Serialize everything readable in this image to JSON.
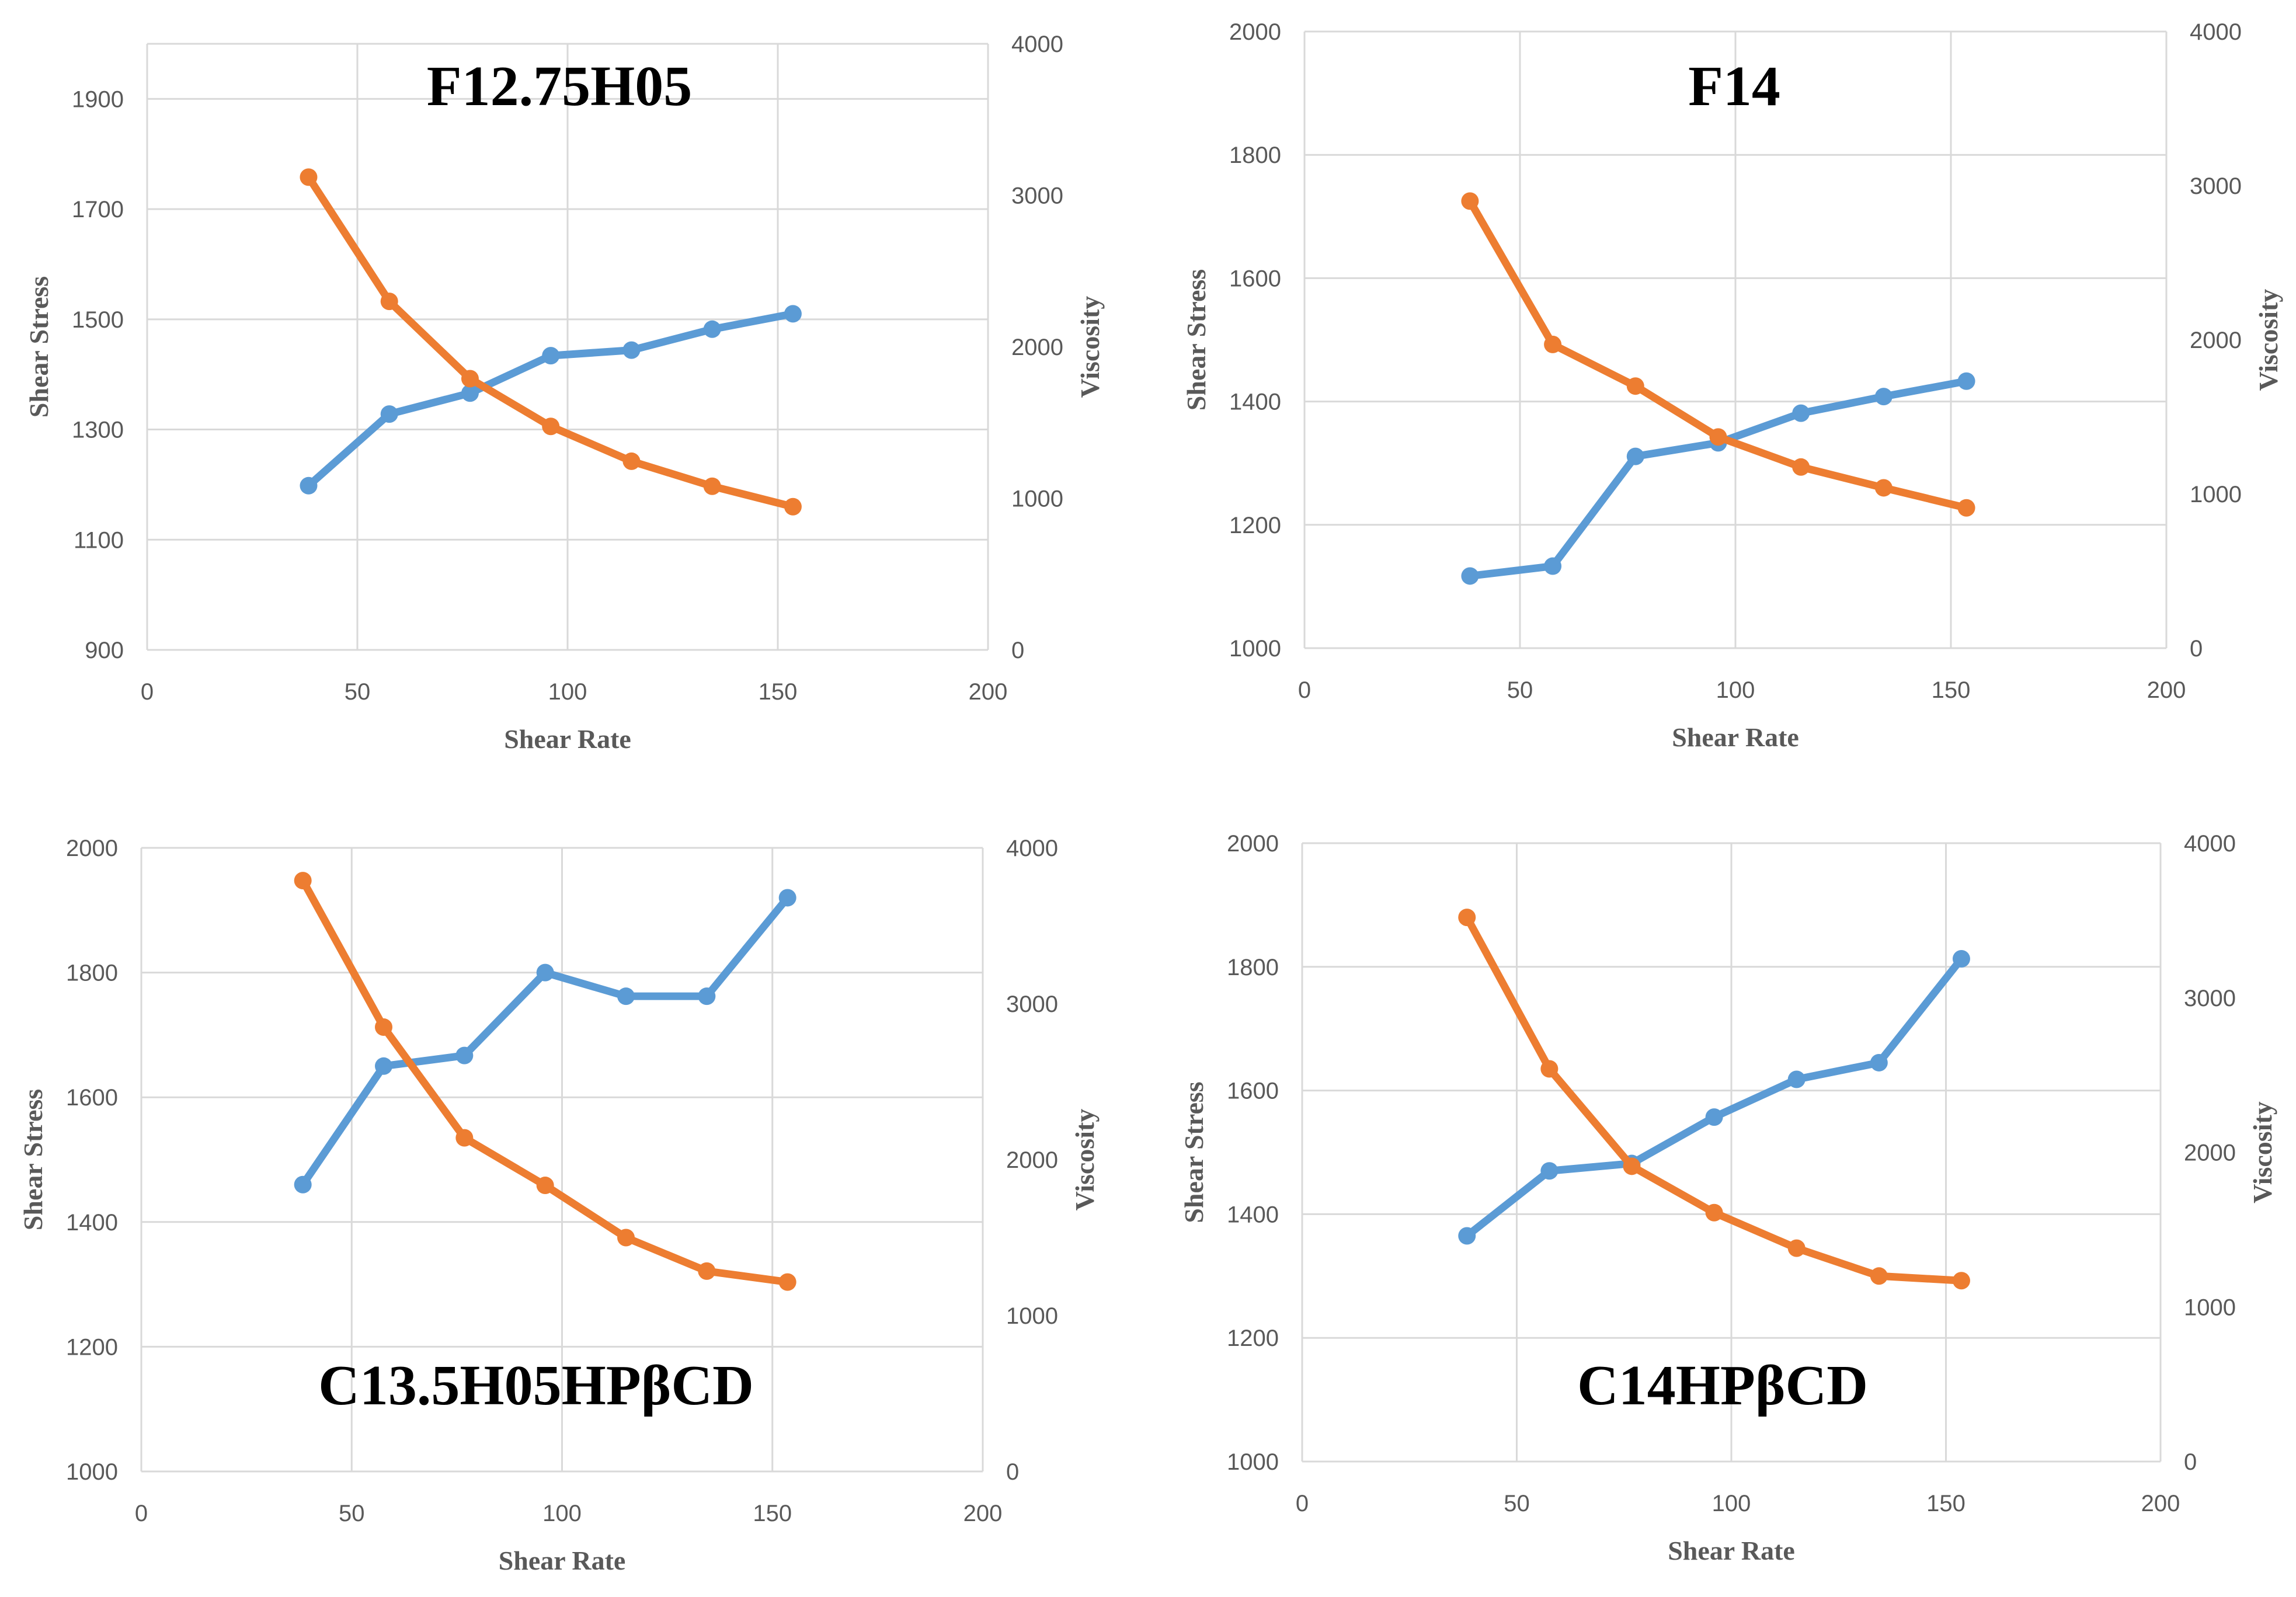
{
  "colors": {
    "shear_stress": "#5b9bd5",
    "viscosity": "#ed7d31",
    "grid": "#d9d9d9",
    "text": "#595959"
  },
  "chart_data": [
    {
      "type": "line",
      "title": "F12.75H05",
      "xlabel": "Shear Rate",
      "ylabel": "Shear Stress",
      "y2label": "Viscosity",
      "xlim": [
        0,
        200
      ],
      "xticks": [
        0,
        50,
        100,
        150,
        200
      ],
      "ylim": [
        900,
        2000
      ],
      "yticks": [
        900,
        1100,
        1300,
        1500,
        1700,
        1900
      ],
      "y2lim": [
        0,
        4000
      ],
      "y2ticks": [
        0,
        1000,
        2000,
        3000,
        4000
      ],
      "x": [
        38.4,
        57.6,
        76.8,
        96,
        115.2,
        134.4,
        153.6
      ],
      "series": [
        {
          "name": "Shear Stress",
          "axis": "left",
          "values": [
            1198,
            1328,
            1366,
            1434,
            1444,
            1482,
            1510
          ]
        },
        {
          "name": "Viscosity",
          "axis": "right",
          "values": [
            3120,
            2300,
            1790,
            1475,
            1245,
            1080,
            945
          ]
        }
      ]
    },
    {
      "type": "line",
      "title": "F14",
      "xlabel": "Shear Rate",
      "ylabel": "Shear Stress",
      "y2label": "Viscosity",
      "xlim": [
        0,
        200
      ],
      "xticks": [
        0,
        50,
        100,
        150,
        200
      ],
      "ylim": [
        1000,
        2000
      ],
      "yticks": [
        1000,
        1200,
        1400,
        1600,
        1800,
        2000
      ],
      "y2lim": [
        0,
        4000
      ],
      "y2ticks": [
        0,
        1000,
        2000,
        3000,
        4000
      ],
      "x": [
        38.4,
        57.6,
        76.8,
        96,
        115.2,
        134.4,
        153.6
      ],
      "series": [
        {
          "name": "Shear Stress",
          "axis": "left",
          "values": [
            1117,
            1133,
            1311,
            1333,
            1381,
            1408,
            1433
          ]
        },
        {
          "name": "Viscosity",
          "axis": "right",
          "values": [
            2900,
            1970,
            1700,
            1370,
            1175,
            1040,
            910
          ]
        }
      ]
    },
    {
      "type": "line",
      "title": "C13.5H05HPβCD",
      "xlabel": "Shear Rate",
      "ylabel": "Shear Stress",
      "y2label": "Viscosity",
      "xlim": [
        0,
        200
      ],
      "xticks": [
        0,
        50,
        100,
        150,
        200
      ],
      "ylim": [
        1000,
        2000
      ],
      "yticks": [
        1000,
        1200,
        1400,
        1600,
        1800,
        2000
      ],
      "y2lim": [
        0,
        4000
      ],
      "y2ticks": [
        0,
        1000,
        2000,
        3000,
        4000
      ],
      "x": [
        38.4,
        57.6,
        76.8,
        96,
        115.2,
        134.4,
        153.6
      ],
      "series": [
        {
          "name": "Shear Stress",
          "axis": "left",
          "values": [
            1460,
            1650,
            1667,
            1800,
            1762,
            1762,
            1920
          ]
        },
        {
          "name": "Viscosity",
          "axis": "right",
          "values": [
            3790,
            2850,
            2140,
            1835,
            1500,
            1285,
            1215
          ]
        }
      ]
    },
    {
      "type": "line",
      "title": "C14HPβCD",
      "xlabel": "Shear Rate",
      "ylabel": "Shear Stress",
      "y2label": "Viscosity",
      "xlim": [
        0,
        200
      ],
      "xticks": [
        0,
        50,
        100,
        150,
        200
      ],
      "ylim": [
        1000,
        2000
      ],
      "yticks": [
        1000,
        1200,
        1400,
        1600,
        1800,
        2000
      ],
      "y2lim": [
        0,
        4000
      ],
      "y2ticks": [
        0,
        1000,
        2000,
        3000,
        4000
      ],
      "x": [
        38.4,
        57.6,
        76.8,
        96,
        115.2,
        134.4,
        153.6
      ],
      "series": [
        {
          "name": "Shear Stress",
          "axis": "left",
          "values": [
            1365,
            1470,
            1482,
            1557,
            1618,
            1645,
            1813
          ]
        },
        {
          "name": "Viscosity",
          "axis": "right",
          "values": [
            3520,
            2540,
            1910,
            1610,
            1380,
            1200,
            1170
          ]
        }
      ]
    }
  ]
}
